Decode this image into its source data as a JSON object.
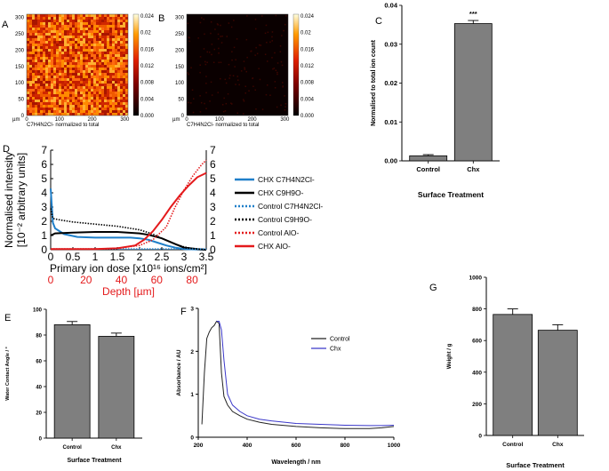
{
  "panels": {
    "A": {
      "label": "A",
      "caption": "C7H4N2Cl- normalized to total",
      "unit": "µm",
      "x_ticks": [
        "0",
        "100",
        "200",
        "300"
      ],
      "y_ticks": [
        "0",
        "50",
        "100",
        "150",
        "200",
        "250",
        "300"
      ],
      "colorbar_ticks": [
        "0.024",
        "0.02",
        "0.016",
        "0.012",
        "0.008",
        "0.004",
        "0.000"
      ]
    },
    "B": {
      "label": "B",
      "caption": "C7H4N2Cl- normalized to total",
      "unit": "µm",
      "x_ticks": [
        "0",
        "100",
        "200",
        "300"
      ],
      "y_ticks": [
        "0",
        "50",
        "100",
        "150",
        "200",
        "250",
        "300"
      ],
      "colorbar_ticks": [
        "0.024",
        "0.02",
        "0.016",
        "0.012",
        "0.008",
        "0.004",
        "0.000"
      ]
    },
    "C": {
      "label": "C"
    },
    "D": {
      "label": "D",
      "x2_ticks": [
        "0",
        "20",
        "40",
        "60",
        "80"
      ]
    },
    "E": {
      "label": "E"
    },
    "F": {
      "label": "F"
    },
    "G": {
      "label": "G"
    }
  },
  "chart_data": [
    {
      "id": "C",
      "type": "bar",
      "categories": [
        "Control",
        "Chx"
      ],
      "values": [
        0.0013,
        0.0353
      ],
      "errors": [
        0.0003,
        0.0008
      ],
      "ylim": [
        0,
        0.04
      ],
      "yticks": [
        "0.00",
        "0.01",
        "0.02",
        "0.03",
        "0.04"
      ],
      "ylabel": "Normalised to total ion count",
      "xlabel": "Surface Treatment",
      "annotation": "***",
      "bar_color": "#7f7f7f"
    },
    {
      "id": "D",
      "type": "line",
      "xlim": [
        0,
        3.5
      ],
      "ylim": [
        0,
        7
      ],
      "xticks": [
        "0",
        "0.5",
        "1",
        "1.5",
        "2",
        "2.5",
        "3",
        "3.5"
      ],
      "yticks": [
        "0",
        "1",
        "2",
        "3",
        "4",
        "5",
        "6",
        "7"
      ],
      "ylabel_line1": "Normalised intensity",
      "ylabel_line2": "[10⁻² arbitrary units]",
      "xlabel": "Primary ion dose [x10¹⁶ ions/cm²]",
      "x2label": "Depth [µm]",
      "series": [
        {
          "name": "CHX C7H4N2Cl-",
          "color": "#1f7fc9",
          "dash": "solid",
          "x": [
            0,
            0.05,
            0.1,
            0.3,
            0.6,
            1.0,
            1.4,
            1.8,
            2.0,
            2.2,
            2.4,
            2.6,
            2.8,
            3.0,
            3.5
          ],
          "y": [
            4.3,
            1.9,
            1.5,
            1.1,
            0.9,
            0.85,
            0.85,
            0.85,
            0.8,
            0.7,
            0.5,
            0.3,
            0.15,
            0.05,
            0.0
          ]
        },
        {
          "name": "CHX C9H9O-",
          "color": "#000000",
          "dash": "solid",
          "x": [
            0,
            0.1,
            0.5,
            1.0,
            1.5,
            2.0,
            2.2,
            2.5,
            2.8,
            3.0,
            3.3,
            3.5
          ],
          "y": [
            1.0,
            1.15,
            1.2,
            1.25,
            1.25,
            1.15,
            1.05,
            0.8,
            0.4,
            0.15,
            0.05,
            0.0
          ]
        },
        {
          "name": "Control C7H4N2Cl-",
          "color": "#1f7fc9",
          "dash": "dotted",
          "x": [
            0,
            0.5,
            1.0,
            1.5,
            2.0,
            2.5,
            2.8,
            3.0,
            3.5
          ],
          "y": [
            0.05,
            0.05,
            0.05,
            0.05,
            0.05,
            0.05,
            0.05,
            0.05,
            0.05
          ]
        },
        {
          "name": "Control C9H9O-",
          "color": "#000000",
          "dash": "dotted",
          "x": [
            0,
            0.05,
            0.2,
            0.5,
            1.0,
            1.5,
            2.0,
            2.3,
            2.5,
            2.8,
            3.0,
            3.2,
            3.5
          ],
          "y": [
            2.9,
            2.2,
            2.1,
            1.95,
            1.8,
            1.65,
            1.4,
            1.1,
            0.8,
            0.4,
            0.2,
            0.08,
            0.0
          ]
        },
        {
          "name": "Control AlO-",
          "color": "#e41a1c",
          "dash": "dotted",
          "x": [
            0,
            0.5,
            1.0,
            1.5,
            2.0,
            2.3,
            2.6,
            2.8,
            3.0,
            3.2,
            3.4,
            3.5
          ],
          "y": [
            0.05,
            0.05,
            0.05,
            0.1,
            0.3,
            0.7,
            1.6,
            3.0,
            4.2,
            5.2,
            6.0,
            6.3
          ]
        },
        {
          "name": "CHX AlO-",
          "color": "#e41a1c",
          "dash": "solid",
          "x": [
            0,
            0.5,
            1.0,
            1.5,
            1.9,
            2.1,
            2.3,
            2.5,
            2.7,
            2.9,
            3.1,
            3.3,
            3.5
          ],
          "y": [
            0.05,
            0.05,
            0.05,
            0.1,
            0.3,
            0.7,
            1.3,
            2.1,
            3.0,
            3.8,
            4.5,
            5.1,
            5.4
          ]
        }
      ]
    },
    {
      "id": "E",
      "type": "bar",
      "categories": [
        "Control",
        "Chx"
      ],
      "values": [
        88,
        79
      ],
      "errors": [
        2.5,
        2.5
      ],
      "ylim": [
        0,
        100
      ],
      "yticks": [
        "0",
        "20",
        "40",
        "60",
        "80",
        "100"
      ],
      "ylabel": "Water Contact Angle / °",
      "xlabel": "Surface Treatment",
      "bar_color": "#7f7f7f"
    },
    {
      "id": "F",
      "type": "line",
      "xlim": [
        200,
        1000
      ],
      "ylim": [
        0,
        3
      ],
      "xticks": [
        "200",
        "400",
        "600",
        "800",
        "1000"
      ],
      "yticks": [
        "0",
        "1",
        "2",
        "3"
      ],
      "ylabel": "Absorbance / AU",
      "xlabel": "Wavelength / nm",
      "series": [
        {
          "name": "Control",
          "color": "#222222",
          "x": [
            215,
            225,
            235,
            245,
            255,
            265,
            275,
            285,
            295,
            305,
            320,
            340,
            370,
            400,
            450,
            500,
            600,
            700,
            800,
            900,
            950,
            1000
          ],
          "y": [
            0.3,
            1.5,
            2.3,
            2.45,
            2.55,
            2.6,
            2.7,
            2.65,
            1.5,
            0.95,
            0.75,
            0.6,
            0.5,
            0.42,
            0.35,
            0.3,
            0.25,
            0.22,
            0.2,
            0.2,
            0.22,
            0.25
          ]
        },
        {
          "name": "Chx",
          "color": "#3a37c9",
          "x": [
            275,
            285,
            295,
            305,
            320,
            340,
            370,
            400,
            450,
            500,
            600,
            700,
            800,
            900,
            950,
            1000
          ],
          "y": [
            2.7,
            2.7,
            2.5,
            1.8,
            1.0,
            0.75,
            0.6,
            0.5,
            0.42,
            0.38,
            0.32,
            0.3,
            0.28,
            0.27,
            0.27,
            0.28
          ]
        }
      ]
    },
    {
      "id": "G",
      "type": "bar",
      "categories": [
        "Control",
        "Chx"
      ],
      "values": [
        765,
        665
      ],
      "errors": [
        35,
        35
      ],
      "ylim": [
        0,
        1000
      ],
      "yticks": [
        "0",
        "200",
        "400",
        "600",
        "800",
        "1000"
      ],
      "ylabel": "Weight / g",
      "xlabel": "Surface Treatment",
      "bar_color": "#7f7f7f"
    }
  ]
}
